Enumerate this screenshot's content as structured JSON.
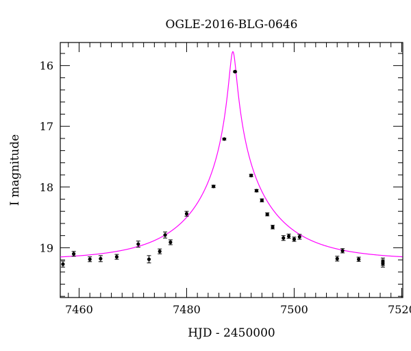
{
  "chart_data": {
    "type": "scatter",
    "title": "OGLE-2016-BLG-0646",
    "xlabel": "HJD - 2450000",
    "ylabel": "I magnitude",
    "xlim": [
      7456.5,
      7520.2
    ],
    "ylim": [
      19.82,
      15.62
    ],
    "y_inverted": true,
    "xticks": [
      7460,
      7480,
      7500,
      7520
    ],
    "yticks": [
      16,
      17,
      18,
      19
    ],
    "grid": false,
    "series": [
      {
        "kind": "points_with_errorbars",
        "color": "#000000",
        "points": [
          {
            "x": 7457.0,
            "y": 19.27,
            "err": 0.05
          },
          {
            "x": 7459.0,
            "y": 19.1,
            "err": 0.04
          },
          {
            "x": 7462.0,
            "y": 19.19,
            "err": 0.04
          },
          {
            "x": 7464.0,
            "y": 19.18,
            "err": 0.05
          },
          {
            "x": 7467.0,
            "y": 19.15,
            "err": 0.04
          },
          {
            "x": 7471.0,
            "y": 18.94,
            "err": 0.05
          },
          {
            "x": 7473.0,
            "y": 19.19,
            "err": 0.06
          },
          {
            "x": 7475.0,
            "y": 19.06,
            "err": 0.04
          },
          {
            "x": 7476.0,
            "y": 18.79,
            "err": 0.05
          },
          {
            "x": 7477.0,
            "y": 18.91,
            "err": 0.04
          },
          {
            "x": 7480.0,
            "y": 18.44,
            "err": 0.04
          },
          {
            "x": 7485.0,
            "y": 17.99,
            "err": 0.02
          },
          {
            "x": 7487.0,
            "y": 17.21,
            "err": 0.015
          },
          {
            "x": 7489.0,
            "y": 16.1,
            "err": 0.01
          },
          {
            "x": 7492.0,
            "y": 17.81,
            "err": 0.02
          },
          {
            "x": 7493.0,
            "y": 18.06,
            "err": 0.02
          },
          {
            "x": 7494.0,
            "y": 18.22,
            "err": 0.025
          },
          {
            "x": 7495.0,
            "y": 18.45,
            "err": 0.025
          },
          {
            "x": 7496.0,
            "y": 18.66,
            "err": 0.03
          },
          {
            "x": 7498.0,
            "y": 18.84,
            "err": 0.04
          },
          {
            "x": 7499.0,
            "y": 18.81,
            "err": 0.035
          },
          {
            "x": 7500.0,
            "y": 18.86,
            "err": 0.035
          },
          {
            "x": 7501.0,
            "y": 18.82,
            "err": 0.04
          },
          {
            "x": 7508.0,
            "y": 19.18,
            "err": 0.04
          },
          {
            "x": 7509.0,
            "y": 19.05,
            "err": 0.035
          },
          {
            "x": 7512.0,
            "y": 19.19,
            "err": 0.035
          },
          {
            "x": 7516.5,
            "y": 19.23,
            "err": 0.06
          },
          {
            "x": 7516.5,
            "y": 19.26,
            "err": 0.06
          }
        ]
      },
      {
        "kind": "model_curve",
        "color": "#ff00ff",
        "t0": 7488.6,
        "u0": 0.0425,
        "tE": 14.6,
        "baseline": 19.2
      }
    ]
  }
}
